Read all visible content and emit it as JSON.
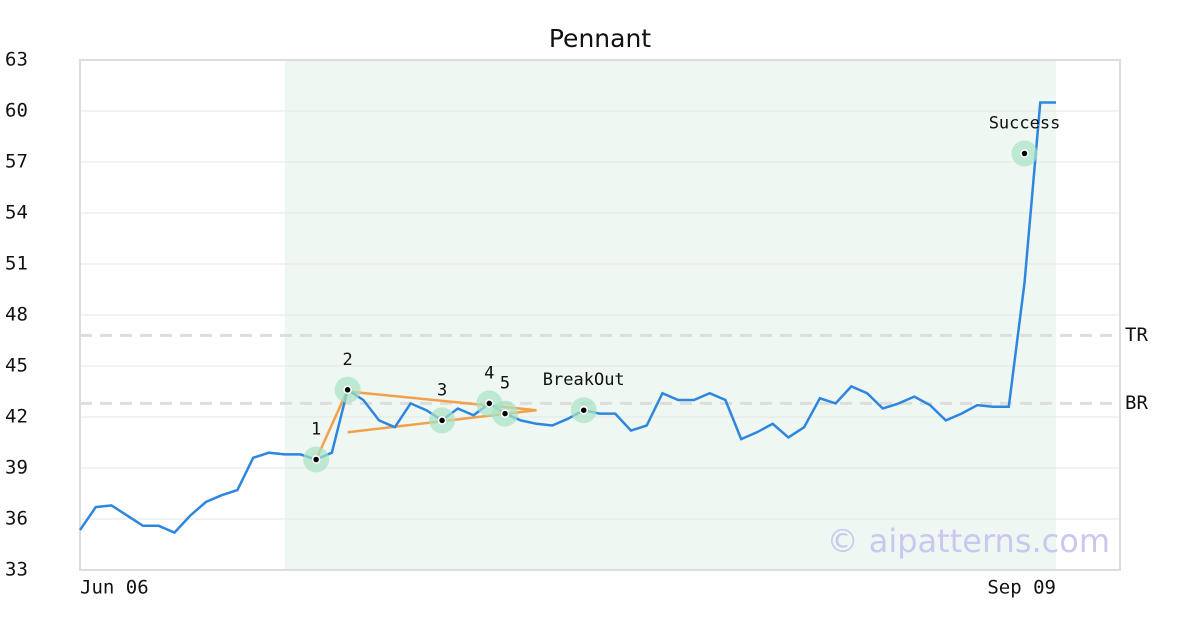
{
  "chart_data": {
    "type": "line",
    "title": "Pennant",
    "watermark": "© aipatterns.com",
    "categories": [
      "Jun 06",
      null,
      null,
      null,
      null,
      null,
      null,
      null,
      null,
      null,
      null,
      null,
      null,
      null,
      null,
      null,
      null,
      null,
      null,
      null,
      null,
      null,
      null,
      null,
      null,
      null,
      null,
      null,
      null,
      null,
      null,
      null,
      null,
      null,
      null,
      null,
      null,
      null,
      null,
      null,
      null,
      null,
      null,
      null,
      null,
      null,
      null,
      null,
      null,
      null,
      null,
      null,
      null,
      null,
      null,
      null,
      null,
      null,
      null,
      null,
      null,
      null,
      "Sep 09"
    ],
    "series": [
      {
        "color": "#2e86de",
        "values": [
          35.35,
          36.7,
          36.8,
          36.2,
          35.6,
          35.6,
          35.2,
          36.2,
          37.0,
          37.4,
          37.7,
          39.6,
          39.9,
          39.8,
          39.8,
          39.5,
          39.9,
          43.6,
          43.0,
          41.8,
          41.4,
          42.8,
          42.4,
          41.8,
          42.5,
          42.1,
          42.8,
          42.2,
          41.8,
          41.6,
          41.5,
          41.9,
          42.4,
          42.2,
          42.2,
          41.2,
          41.5,
          43.4,
          43.0,
          43.0,
          43.4,
          43.0,
          40.7,
          41.1,
          41.6,
          40.8,
          41.4,
          43.1,
          42.8,
          43.8,
          43.4,
          42.5,
          42.8,
          43.2,
          42.7,
          41.8,
          42.2,
          42.7,
          42.6,
          42.6,
          49.9,
          60.5,
          60.5
        ]
      }
    ],
    "ylim": [
      33,
      63
    ],
    "yticks": [
      33,
      36,
      39,
      42,
      45,
      48,
      51,
      54,
      57,
      60,
      63
    ],
    "grid": true,
    "highlight_range": [
      13,
      62
    ],
    "highlight_color": "#eef7f2",
    "levels": [
      {
        "label": "TR",
        "value": 46.8
      },
      {
        "label": "BR",
        "value": 42.8
      }
    ],
    "markers": [
      {
        "label": "1",
        "x": 15,
        "value": 39.5
      },
      {
        "label": "2",
        "x": 17,
        "value": 43.6
      },
      {
        "label": "3",
        "x": 23,
        "value": 41.8
      },
      {
        "label": "4",
        "x": 26,
        "value": 42.8
      },
      {
        "label": "5",
        "x": 27,
        "value": 42.2
      },
      {
        "label": "BreakOut",
        "x": 32,
        "value": 42.4
      },
      {
        "label": "Success",
        "x": 60,
        "value": 57.5
      }
    ],
    "trendlines": [
      {
        "x": [
          15,
          17
        ],
        "values": [
          39.5,
          43.6
        ]
      },
      {
        "x": [
          17,
          29
        ],
        "values": [
          43.5,
          42.4
        ]
      },
      {
        "x": [
          17,
          29
        ],
        "values": [
          41.1,
          42.4
        ]
      }
    ],
    "trend_color": "#f4a04a"
  }
}
